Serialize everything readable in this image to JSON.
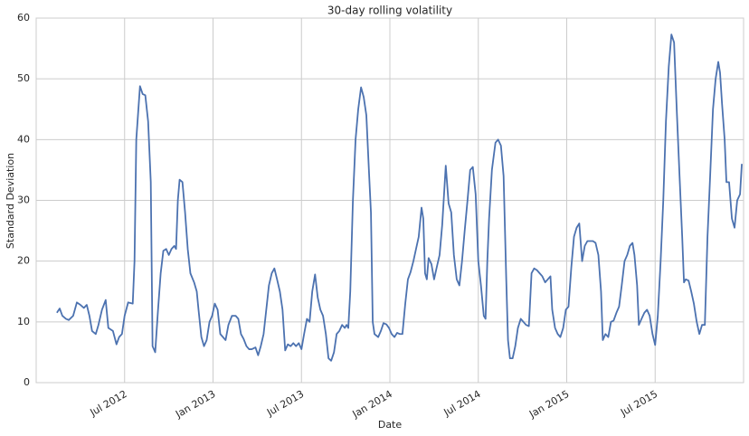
{
  "chart_data": {
    "type": "line",
    "title": "30-day rolling volatility",
    "x_label": "Date",
    "y_label": "Standard Deviation",
    "color": "#4c72b0",
    "grid": true,
    "xlim": [
      2012.0,
      2016.0
    ],
    "ylim": [
      0,
      60
    ],
    "yticks": [
      0,
      10,
      20,
      30,
      40,
      50,
      60
    ],
    "xticks": [
      {
        "value": 2012.5,
        "label": "Jul 2012"
      },
      {
        "value": 2013.0,
        "label": "Jan 2013"
      },
      {
        "value": 2013.5,
        "label": "Jul 2013"
      },
      {
        "value": 2014.0,
        "label": "Jan 2014"
      },
      {
        "value": 2014.5,
        "label": "Jul 2014"
      },
      {
        "value": 2015.0,
        "label": "Jan 2015"
      },
      {
        "value": 2015.5,
        "label": "Jul 2015"
      }
    ],
    "x": [
      2012.117,
      2012.133,
      2012.148,
      2012.168,
      2012.184,
      2012.209,
      2012.23,
      2012.25,
      2012.27,
      2012.286,
      2012.301,
      2012.316,
      2012.337,
      2012.352,
      2012.372,
      2012.393,
      2012.408,
      2012.434,
      2012.454,
      2012.469,
      2012.485,
      2012.5,
      2012.52,
      2012.546,
      2012.556,
      2012.566,
      2012.587,
      2012.602,
      2012.617,
      2012.633,
      2012.648,
      2012.658,
      2012.673,
      2012.689,
      2012.704,
      2012.719,
      2012.735,
      2012.75,
      2012.765,
      2012.781,
      2012.791,
      2012.801,
      2012.811,
      2012.827,
      2012.842,
      2012.857,
      2012.872,
      2012.893,
      2012.908,
      2012.918,
      2012.934,
      2012.949,
      2012.964,
      2012.98,
      2012.995,
      2013.01,
      2013.026,
      2013.041,
      2013.056,
      2013.071,
      2013.087,
      2013.107,
      2013.128,
      2013.143,
      2013.158,
      2013.173,
      2013.189,
      2013.204,
      2013.219,
      2013.24,
      2013.255,
      2013.27,
      2013.286,
      2013.301,
      2013.316,
      2013.332,
      2013.347,
      2013.362,
      2013.378,
      2013.393,
      2013.408,
      2013.423,
      2013.439,
      2013.454,
      2013.469,
      2013.485,
      2013.5,
      2013.515,
      2013.531,
      2013.546,
      2013.561,
      2013.577,
      2013.592,
      2013.607,
      2013.622,
      2013.638,
      2013.653,
      2013.668,
      2013.684,
      2013.699,
      2013.714,
      2013.73,
      2013.745,
      2013.755,
      2013.765,
      2013.776,
      2013.791,
      2013.806,
      2013.821,
      2013.837,
      2013.852,
      2013.867,
      2013.883,
      2013.893,
      2013.903,
      2013.913,
      2013.934,
      2013.949,
      2013.964,
      2013.98,
      2013.995,
      2014.01,
      2014.026,
      2014.041,
      2014.056,
      2014.071,
      2014.087,
      2014.102,
      2014.117,
      2014.133,
      2014.148,
      2014.163,
      2014.179,
      2014.189,
      2014.199,
      2014.209,
      2014.219,
      2014.235,
      2014.25,
      2014.265,
      2014.281,
      2014.296,
      2014.316,
      2014.332,
      2014.347,
      2014.362,
      2014.378,
      2014.393,
      2014.408,
      2014.423,
      2014.439,
      2014.454,
      2014.469,
      2014.485,
      2014.5,
      2014.515,
      2014.531,
      2014.541,
      2014.551,
      2014.561,
      2014.577,
      2014.597,
      2014.612,
      2014.628,
      2014.643,
      2014.658,
      2014.668,
      2014.679,
      2014.694,
      2014.709,
      2014.724,
      2014.74,
      2014.755,
      2014.77,
      2014.786,
      2014.801,
      2014.816,
      2014.832,
      2014.847,
      2014.862,
      2014.878,
      2014.893,
      2014.908,
      2014.918,
      2014.934,
      2014.949,
      2014.964,
      2014.98,
      2014.995,
      2015.01,
      2015.026,
      2015.041,
      2015.056,
      2015.071,
      2015.087,
      2015.102,
      2015.117,
      2015.133,
      2015.148,
      2015.163,
      2015.179,
      2015.194,
      2015.204,
      2015.219,
      2015.235,
      2015.25,
      2015.265,
      2015.281,
      2015.296,
      2015.311,
      2015.327,
      2015.342,
      2015.357,
      2015.372,
      2015.383,
      2015.398,
      2015.408,
      2015.423,
      2015.439,
      2015.454,
      2015.469,
      2015.485,
      2015.5,
      2015.515,
      2015.531,
      2015.546,
      2015.561,
      2015.577,
      2015.592,
      2015.607,
      2015.622,
      2015.638,
      2015.653,
      2015.663,
      2015.673,
      2015.689,
      2015.704,
      2015.719,
      2015.735,
      2015.75,
      2015.765,
      2015.781,
      2015.796,
      2015.811,
      2015.827,
      2015.842,
      2015.857,
      2015.867,
      2015.878,
      2015.893,
      2015.903,
      2015.918,
      2015.934,
      2015.949,
      2015.964,
      2015.98,
      2015.99
    ],
    "values": [
      11.5,
      12.2,
      11,
      10.5,
      10.3,
      11,
      13.2,
      12.8,
      12.3,
      12.8,
      11,
      8.5,
      8,
      9.5,
      12,
      13.6,
      9,
      8.5,
      6.3,
      7.5,
      8,
      11,
      13.2,
      13,
      20,
      40,
      48.8,
      47.5,
      47.3,
      43,
      33,
      6,
      5,
      12,
      18,
      21.7,
      22,
      21,
      22,
      22.5,
      22,
      30,
      33.4,
      33,
      28,
      22,
      18,
      16.5,
      15,
      12,
      7.5,
      6,
      7,
      10,
      11,
      13,
      12,
      8,
      7.5,
      7,
      9.5,
      11,
      11,
      10.5,
      8,
      7.2,
      6,
      5.5,
      5.5,
      5.8,
      4.5,
      6,
      8,
      12,
      16,
      18,
      18.8,
      17,
      15,
      12,
      5.3,
      6.3,
      6,
      6.5,
      6,
      6.5,
      5.5,
      8,
      10.5,
      10,
      15,
      17.8,
      14,
      12,
      11,
      8,
      4,
      3.6,
      5,
      8,
      8.5,
      9.5,
      9,
      9.5,
      9,
      15,
      30,
      40,
      45,
      48.6,
      47,
      44,
      34,
      28,
      10,
      8,
      7.5,
      8.5,
      9.8,
      9.6,
      9,
      8,
      7.5,
      8.2,
      8,
      8,
      13,
      17,
      18.2,
      20,
      22,
      24,
      28.8,
      27,
      18,
      17,
      20.5,
      19.5,
      17,
      19,
      21,
      26,
      35.7,
      29.5,
      28,
      21,
      17,
      16,
      20,
      25,
      30,
      35,
      35.5,
      31,
      20,
      16,
      11,
      10.5,
      20,
      27,
      35,
      39.5,
      40,
      39,
      34,
      17,
      7,
      4,
      4,
      6,
      9,
      10.5,
      10,
      9.5,
      9.3,
      18,
      18.8,
      18.5,
      18,
      17.5,
      16.5,
      17,
      17.5,
      12,
      9,
      8,
      7.5,
      9,
      12,
      12.5,
      19,
      24,
      25.5,
      26.2,
      20,
      22.5,
      23.3,
      23.3,
      23.3,
      23,
      21,
      15,
      7,
      8,
      7.5,
      10,
      10.2,
      11.5,
      12.5,
      16,
      20,
      21,
      22.5,
      23,
      21,
      16,
      9.5,
      10.5,
      11.5,
      12,
      11,
      8,
      6.2,
      11,
      20,
      30,
      43,
      52,
      57.3,
      56,
      45,
      34,
      24,
      16.5,
      17,
      16.8,
      15,
      13,
      10,
      8,
      9.5,
      9.5,
      24,
      34,
      45,
      50,
      52.8,
      51,
      46,
      40,
      33,
      33,
      27,
      25.5,
      30,
      31,
      36
    ]
  }
}
